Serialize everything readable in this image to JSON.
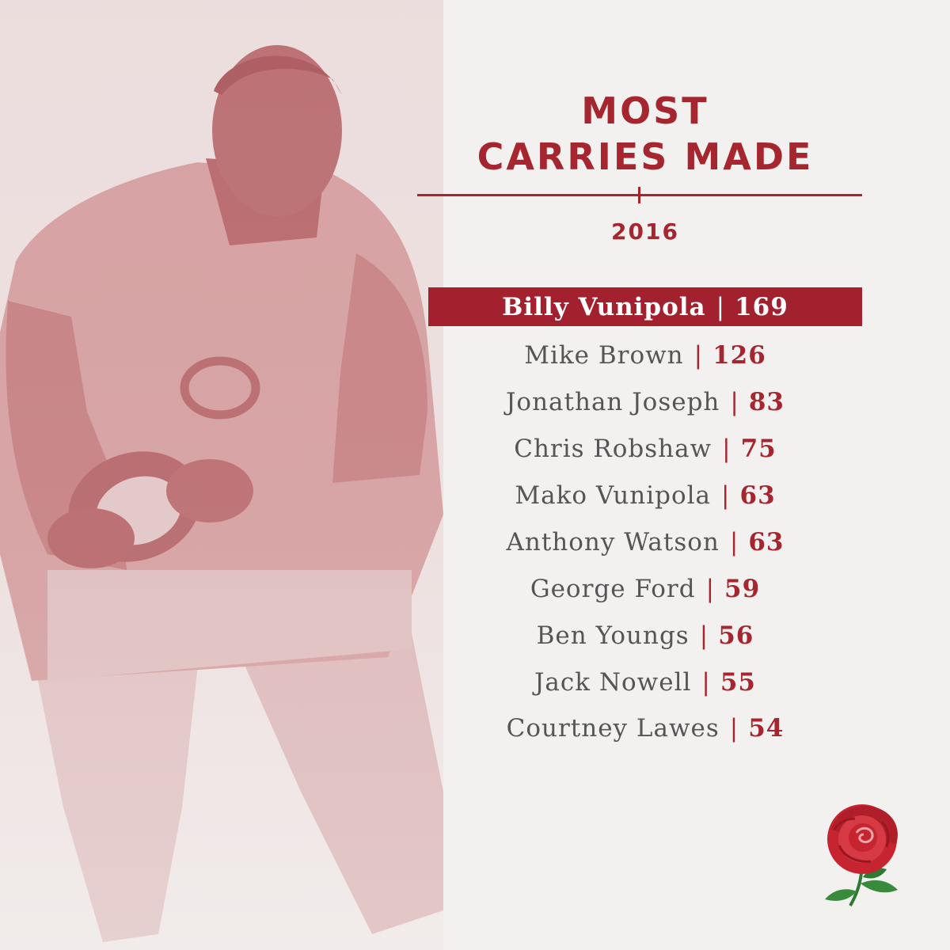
{
  "title_line1": "MOST",
  "title_line2": "CARRIES MADE",
  "year": "2016",
  "separator": "|",
  "players": [
    {
      "name": "Billy Vunipola",
      "value": "169"
    },
    {
      "name": "Mike Brown",
      "value": "126"
    },
    {
      "name": "Jonathan Joseph",
      "value": "83"
    },
    {
      "name": "Chris Robshaw",
      "value": "75"
    },
    {
      "name": "Mako Vunipola",
      "value": "63"
    },
    {
      "name": "Anthony Watson",
      "value": "63"
    },
    {
      "name": "George Ford",
      "value": "59"
    },
    {
      "name": "Ben Youngs",
      "value": "56"
    },
    {
      "name": "Jack Nowell",
      "value": "55"
    },
    {
      "name": "Courtney Lawes",
      "value": "54"
    }
  ],
  "colors": {
    "accent": "#a5262f",
    "highlight_bar": "#a3212f",
    "background": "#f3f1f0",
    "name_text": "#555555",
    "photo_tint": "#c98385",
    "rose_red": "#c6242f",
    "rose_leaf": "#3a8a3b"
  },
  "icons": {
    "player_photo": "rugby-player-photo",
    "logo": "england-rose-icon"
  }
}
